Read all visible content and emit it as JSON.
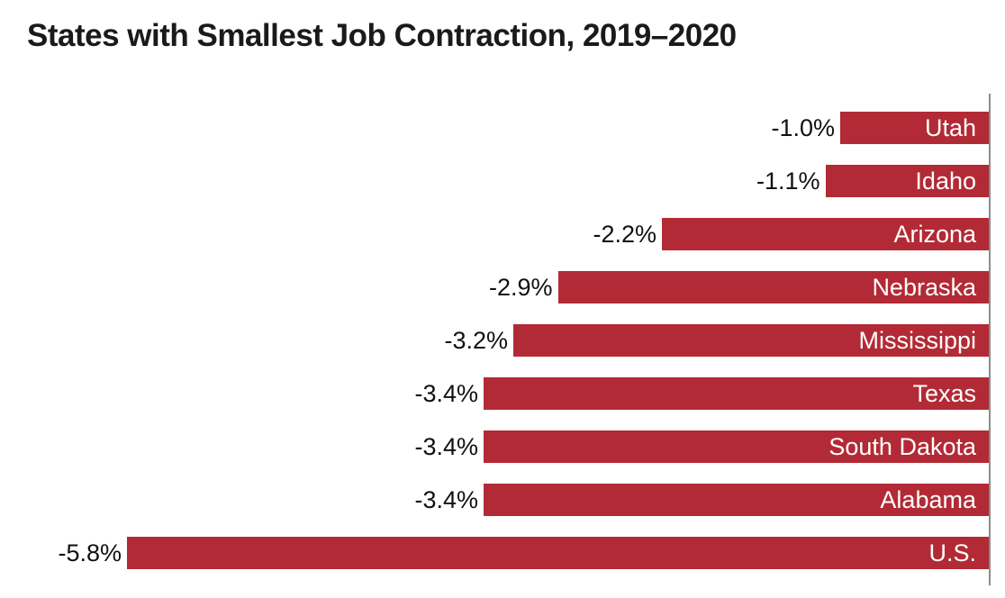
{
  "chart_data": {
    "type": "bar",
    "orientation": "horizontal",
    "title": "States with Smallest Job Contraction, 2019–2020",
    "categories": [
      "Utah",
      "Idaho",
      "Arizona",
      "Nebraska",
      "Mississippi",
      "Texas",
      "South Dakota",
      "Alabama",
      "U.S."
    ],
    "values": [
      -1.0,
      -1.1,
      -2.2,
      -2.9,
      -3.2,
      -3.4,
      -3.4,
      -3.4,
      -5.8
    ],
    "value_labels": [
      "-1.0%",
      "-1.1%",
      "-2.2%",
      "-2.9%",
      "-3.2%",
      "-3.4%",
      "-3.4%",
      "-3.4%",
      "-5.8%"
    ],
    "xlim": [
      -5.8,
      0
    ],
    "grid": false,
    "legend": "none",
    "colors": {
      "bar": "#b22a35",
      "bar_text": "#ffffff",
      "value_text": "#111111",
      "axis": "#8c8c8c"
    }
  }
}
